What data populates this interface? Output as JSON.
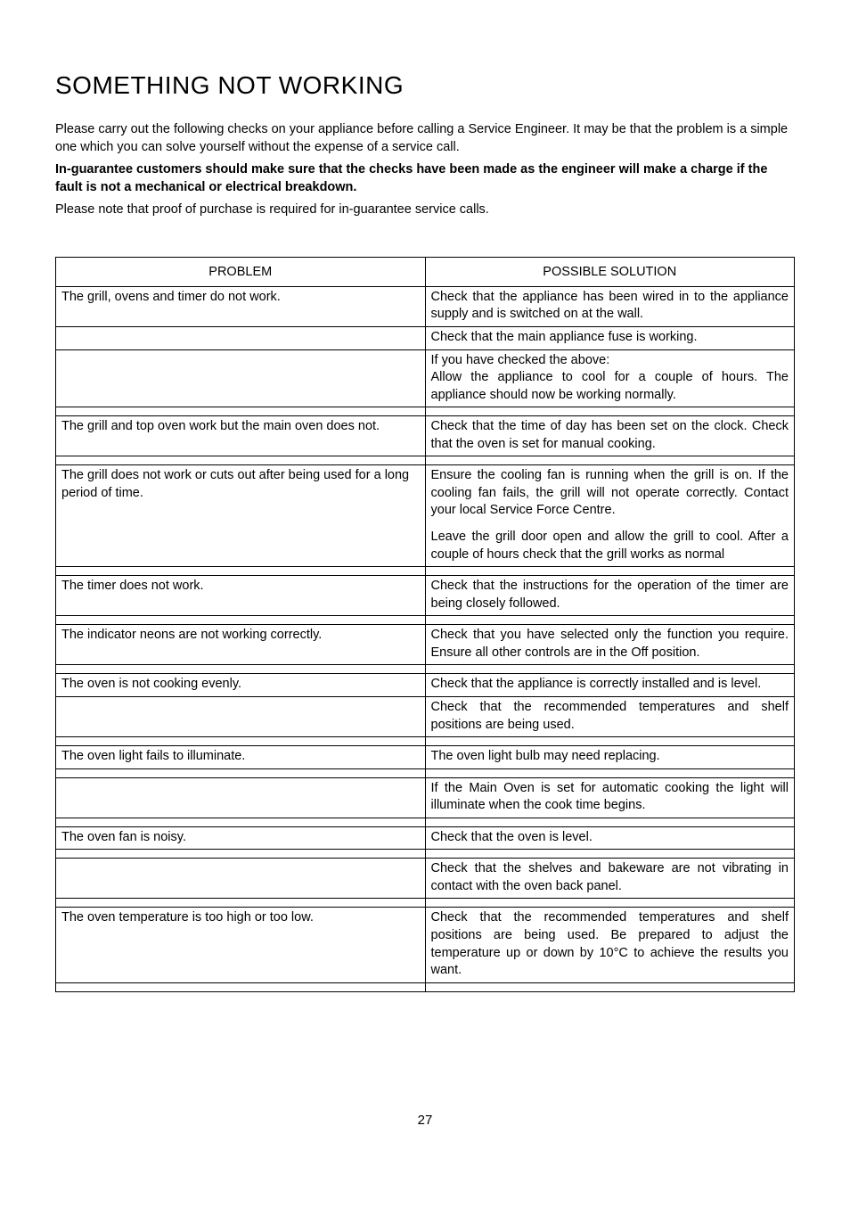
{
  "title": "SOMETHING NOT WORKING",
  "intro1": "Please carry out the following checks on your appliance before calling a Service Engineer. It may be that the problem is a simple one which you can solve yourself without the expense of a service call.",
  "intro2": "In-guarantee customers should make sure that the checks have been made as the engineer will make a charge if the fault is not a mechanical or electrical breakdown.",
  "intro3": "Please note that proof of purchase is required for in-guarantee service calls.",
  "header_left": "PROBLEM",
  "header_right": "POSSIBLE SOLUTION",
  "page_number": "27",
  "rows": [
    {
      "problem": "The grill, ovens and timer do not work.",
      "solution": "Check that the appliance has been wired in to the appliance supply and is switched on at the wall.",
      "justify": true
    },
    {
      "problem": "",
      "solution": "Check that the main appliance fuse is working."
    },
    {
      "problem": "",
      "solution": "If you have checked the above:\nAllow the appliance to cool for a couple of hours.  The appliance should now be working normally.",
      "justify": true
    },
    {
      "spacer": true
    },
    {
      "problem": "The grill and top oven work but the main oven does not.",
      "solution": "Check that the time of day has been set on the clock. Check that the oven is set for manual cooking.",
      "justify": true
    },
    {
      "spacer": true
    },
    {
      "problem": "The grill does not work or cuts out after being used for a long period of time.",
      "solution": "Ensure the cooling fan is running when the grill is on.  If the cooling fan fails, the grill will not operate correctly.  Contact your local Service Force Centre.",
      "justify": true
    },
    {
      "problem": "",
      "solution": "",
      "noborder": true
    },
    {
      "problem": "",
      "solution": "Leave the grill door open and allow the grill to cool.  After a couple of hours check that the grill works as normal",
      "justify": true,
      "noborder": true
    },
    {
      "spacer": true
    },
    {
      "problem": "The timer does not work.",
      "solution": "Check that the instructions for the operation of the timer are being closely followed.",
      "justify": true
    },
    {
      "spacer": true
    },
    {
      "problem": "The indicator neons are not working correctly.",
      "solution": "Check that you have selected only the function you require. Ensure all other controls are in the Off position.",
      "justify": true
    },
    {
      "spacer": true
    },
    {
      "problem": "The oven is not cooking evenly.",
      "solution": "Check that the appliance is correctly installed and is level."
    },
    {
      "problem": "",
      "solution": "Check that the recommended temperatures and shelf positions are being used.",
      "justify": true
    },
    {
      "spacer": true
    },
    {
      "problem": "The oven light fails to illuminate.",
      "solution": "The oven light bulb may need replacing."
    },
    {
      "spacer": true
    },
    {
      "problem": "",
      "solution": "If the Main Oven is set for automatic cooking the light will illuminate when the cook time begins.",
      "justify": true
    },
    {
      "spacer": true
    },
    {
      "problem": "The oven fan is noisy.",
      "solution": "Check that the oven is level."
    },
    {
      "spacer": true
    },
    {
      "problem": "",
      "solution": "Check that the shelves and bakeware are not vibrating in contact with the oven back panel.",
      "justify": true
    },
    {
      "spacer": true
    },
    {
      "problem": "The oven temperature is too high or too low.",
      "solution": "Check that the recommended temperatures and shelf positions are being used.  Be prepared to adjust the temperature up or down by 10°C to achieve the results you want.",
      "justify": true
    },
    {
      "spacer": true
    }
  ]
}
